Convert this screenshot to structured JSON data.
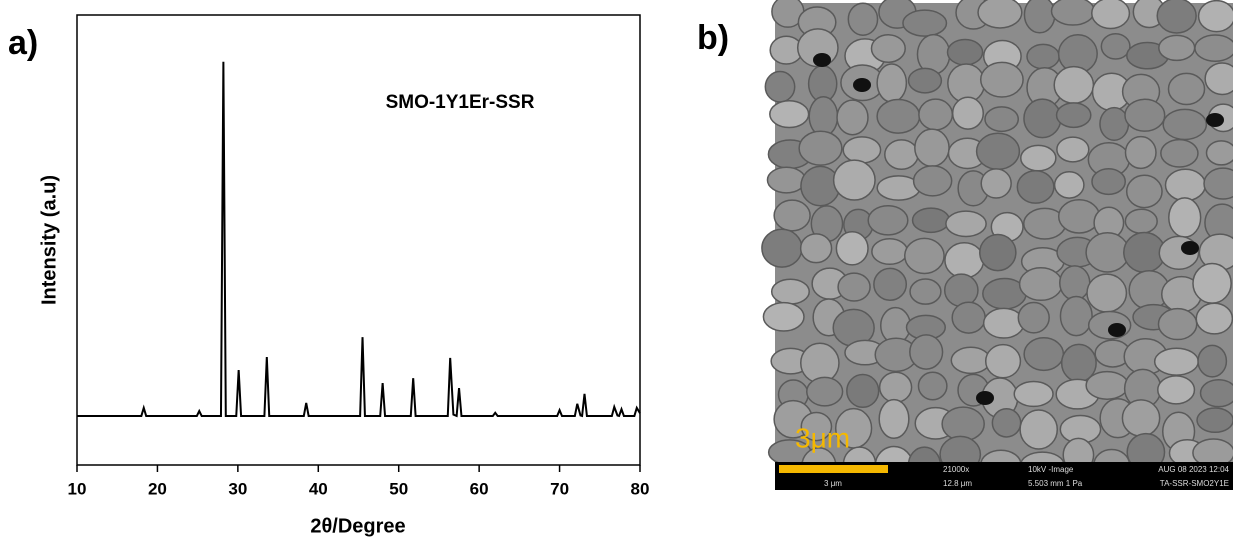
{
  "chart_data": {
    "type": "line",
    "panel_label": "a)",
    "annotation": "SMO-1Y1Er-SSR",
    "xlabel": "2θ/Degree",
    "ylabel": "Intensity (a.u)",
    "color": "#000000",
    "xlim": [
      10,
      80
    ],
    "xticks": [
      10,
      20,
      30,
      40,
      50,
      60,
      70,
      80
    ],
    "ylim": [
      0,
      100
    ],
    "x": [
      10,
      18.0,
      18.3,
      18.6,
      24.9,
      25.2,
      25.5,
      27.9,
      28.2,
      28.5,
      29.8,
      30.1,
      30.4,
      33.3,
      33.6,
      33.9,
      38.2,
      38.5,
      38.8,
      45.2,
      45.5,
      45.8,
      47.7,
      48.0,
      48.3,
      51.5,
      51.8,
      52.1,
      56.1,
      56.4,
      56.8,
      57.2,
      57.5,
      57.8,
      61.7,
      62.0,
      62.3,
      69.7,
      70.0,
      70.3,
      71.9,
      72.2,
      72.6,
      72.8,
      73.1,
      73.4,
      76.5,
      76.8,
      77.2,
      77.4,
      77.7,
      78.0,
      79.3,
      79.6,
      80
    ],
    "values": [
      10.9,
      10.9,
      12.7,
      10.9,
      10.9,
      12.0,
      10.9,
      10.9,
      89.6,
      10.9,
      10.9,
      21.1,
      10.9,
      10.9,
      24.0,
      10.9,
      10.9,
      13.8,
      10.9,
      10.9,
      28.4,
      10.9,
      10.9,
      18.2,
      10.9,
      10.9,
      19.3,
      10.9,
      10.9,
      23.8,
      11.2,
      10.9,
      17.1,
      10.9,
      10.9,
      11.6,
      10.9,
      10.9,
      12.2,
      10.9,
      10.9,
      13.6,
      11.0,
      10.9,
      15.8,
      10.9,
      10.9,
      12.9,
      11.0,
      10.9,
      12.4,
      10.9,
      10.9,
      12.7,
      11.5
    ]
  },
  "image_panel": {
    "panel_label": "b)",
    "scale_text": "3μm",
    "info_bar": {
      "scale": "3 μm",
      "magnification": "21000x",
      "field": "12.8 μm",
      "mode": "10kV -Image",
      "working": "5.503 mm   1 Pa",
      "date": "AUG 08 2023 12:04",
      "sample": "TA-SSR-SMO2Y1E"
    }
  }
}
